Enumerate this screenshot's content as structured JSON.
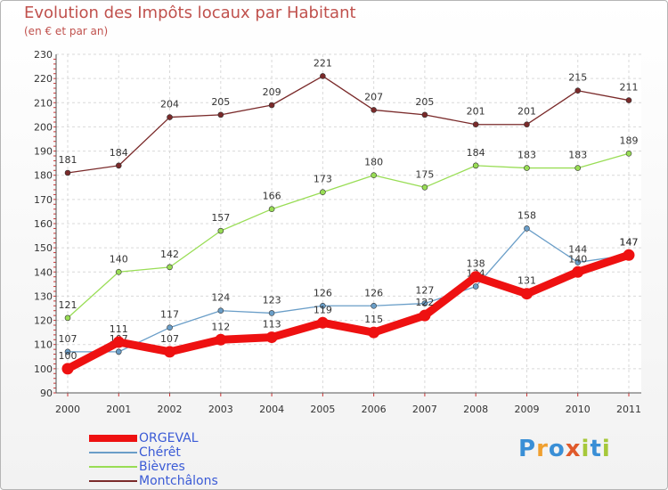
{
  "title": "Evolution des Impôts locaux par Habitant",
  "subtitle": "(en € et par an)",
  "logo": {
    "letters": [
      "P",
      "r",
      "o",
      "x",
      "i",
      "t",
      "i"
    ],
    "colors": [
      "#3a8fd6",
      "#f0a030",
      "#3a8fd6",
      "#e05a2b",
      "#a6c83a",
      "#3a8fd6",
      "#a6c83a"
    ]
  },
  "chart_data": {
    "type": "line",
    "title": "Evolution des Impôts locaux par Habitant",
    "subtitle": "(en € et par an)",
    "categories": [
      "2000",
      "2001",
      "2002",
      "2003",
      "2004",
      "2005",
      "2006",
      "2007",
      "2008",
      "2009",
      "2010",
      "2011"
    ],
    "ylim": [
      90,
      230
    ],
    "yticks": [
      90,
      100,
      110,
      120,
      130,
      140,
      150,
      160,
      170,
      180,
      190,
      200,
      210,
      220,
      230
    ],
    "grid": true,
    "series": [
      {
        "name": "ORGEVAL",
        "color": "#ee1111",
        "thick": true,
        "values": [
          100,
          111,
          107,
          112,
          113,
          119,
          115,
          122,
          138,
          131,
          140,
          147
        ]
      },
      {
        "name": "Chérêt",
        "color": "#6a9ec8",
        "thick": false,
        "values": [
          107,
          107,
          117,
          124,
          123,
          126,
          126,
          127,
          134,
          158,
          144,
          147
        ]
      },
      {
        "name": "Bièvres",
        "color": "#99dd55",
        "thick": false,
        "values": [
          121,
          140,
          142,
          157,
          166,
          173,
          180,
          175,
          184,
          183,
          183,
          189
        ]
      },
      {
        "name": "Montchâlons",
        "color": "#7a2a2a",
        "thick": false,
        "values": [
          181,
          184,
          204,
          205,
          209,
          221,
          207,
          205,
          201,
          201,
          215,
          211
        ]
      }
    ]
  }
}
